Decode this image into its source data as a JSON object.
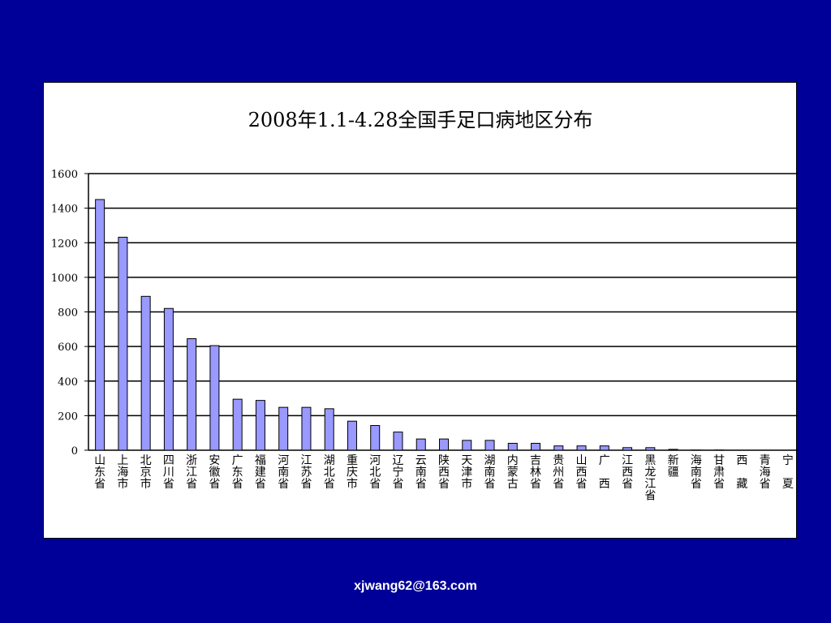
{
  "chart_data": {
    "type": "bar",
    "title": "2008年1.1-4.28全国手足口病地区分布",
    "categories": [
      "山东省",
      "上海市",
      "北京市",
      "四川省",
      "浙江省",
      "安徽省",
      "广东省",
      "福建省",
      "河南省",
      "江苏省",
      "湖北省",
      "重庆市",
      "河北省",
      "辽宁省",
      "云南省",
      "陕西省",
      "天津市",
      "湖南省",
      "内蒙古",
      "吉林省",
      "贵州省",
      "山西省",
      "广 西",
      "江西省",
      "黑龙江省",
      "新疆",
      "海南省",
      "甘肃省",
      "西 藏",
      "青海省",
      "宁 夏"
    ],
    "values": [
      1450,
      1232,
      890,
      820,
      645,
      605,
      295,
      288,
      248,
      248,
      240,
      168,
      143,
      105,
      65,
      65,
      57,
      57,
      40,
      40,
      25,
      25,
      25,
      15,
      15,
      5,
      1,
      1,
      0,
      0,
      0
    ],
    "ylim": [
      0,
      1600
    ],
    "yticks": [
      0,
      200,
      400,
      600,
      800,
      1000,
      1200,
      1400,
      1600
    ],
    "grid": true,
    "xlabel": "",
    "ylabel": "",
    "colors": {
      "bar_fill": "#9999ff",
      "bar_stroke": "#000000",
      "grid": "#000000",
      "background": "#000099"
    }
  },
  "footer": {
    "email": "xjwang62@163.com"
  }
}
